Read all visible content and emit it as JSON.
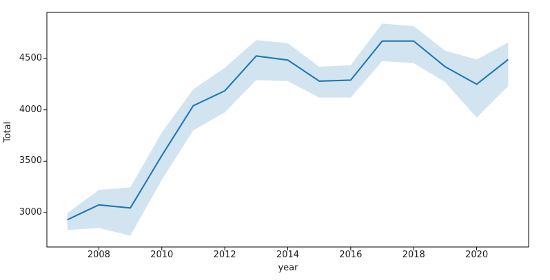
{
  "chart_data": {
    "type": "line",
    "title": "",
    "xlabel": "year",
    "ylabel": "Total",
    "x": [
      2007,
      2008,
      2009,
      2010,
      2011,
      2012,
      2013,
      2014,
      2015,
      2016,
      2017,
      2018,
      2019,
      2020,
      2021
    ],
    "series": [
      {
        "name": "Total",
        "values": [
          2930,
          3075,
          3045,
          3555,
          4040,
          4185,
          4525,
          4485,
          4280,
          4290,
          4670,
          4670,
          4420,
          4250,
          4490
        ]
      }
    ],
    "band": {
      "name": "confidence-interval",
      "upper": [
        2995,
        3220,
        3245,
        3780,
        4200,
        4410,
        4680,
        4650,
        4420,
        4435,
        4840,
        4815,
        4575,
        4490,
        4655
      ],
      "lower": [
        2830,
        2850,
        2775,
        3320,
        3800,
        3975,
        4290,
        4280,
        4120,
        4120,
        4475,
        4455,
        4270,
        3925,
        4230
      ]
    },
    "xticks": [
      "2008",
      "2010",
      "2012",
      "2014",
      "2016",
      "2018",
      "2020"
    ],
    "xtick_values": [
      2008,
      2010,
      2012,
      2014,
      2016,
      2018,
      2020
    ],
    "yticks": [
      "3000",
      "3500",
      "4000",
      "4500"
    ],
    "ytick_values": [
      3000,
      3500,
      4000,
      4500
    ],
    "xlim": [
      2006.35,
      2021.65
    ],
    "ylim": [
      2665,
      4949
    ],
    "grid": false,
    "legend_position": "none",
    "line_color": "#1f77b4",
    "line_width": 2.1,
    "band_color": "#1f77b4",
    "band_opacity": 0.2,
    "axis_color": "#000000",
    "text_color": "#1a1a1a"
  }
}
